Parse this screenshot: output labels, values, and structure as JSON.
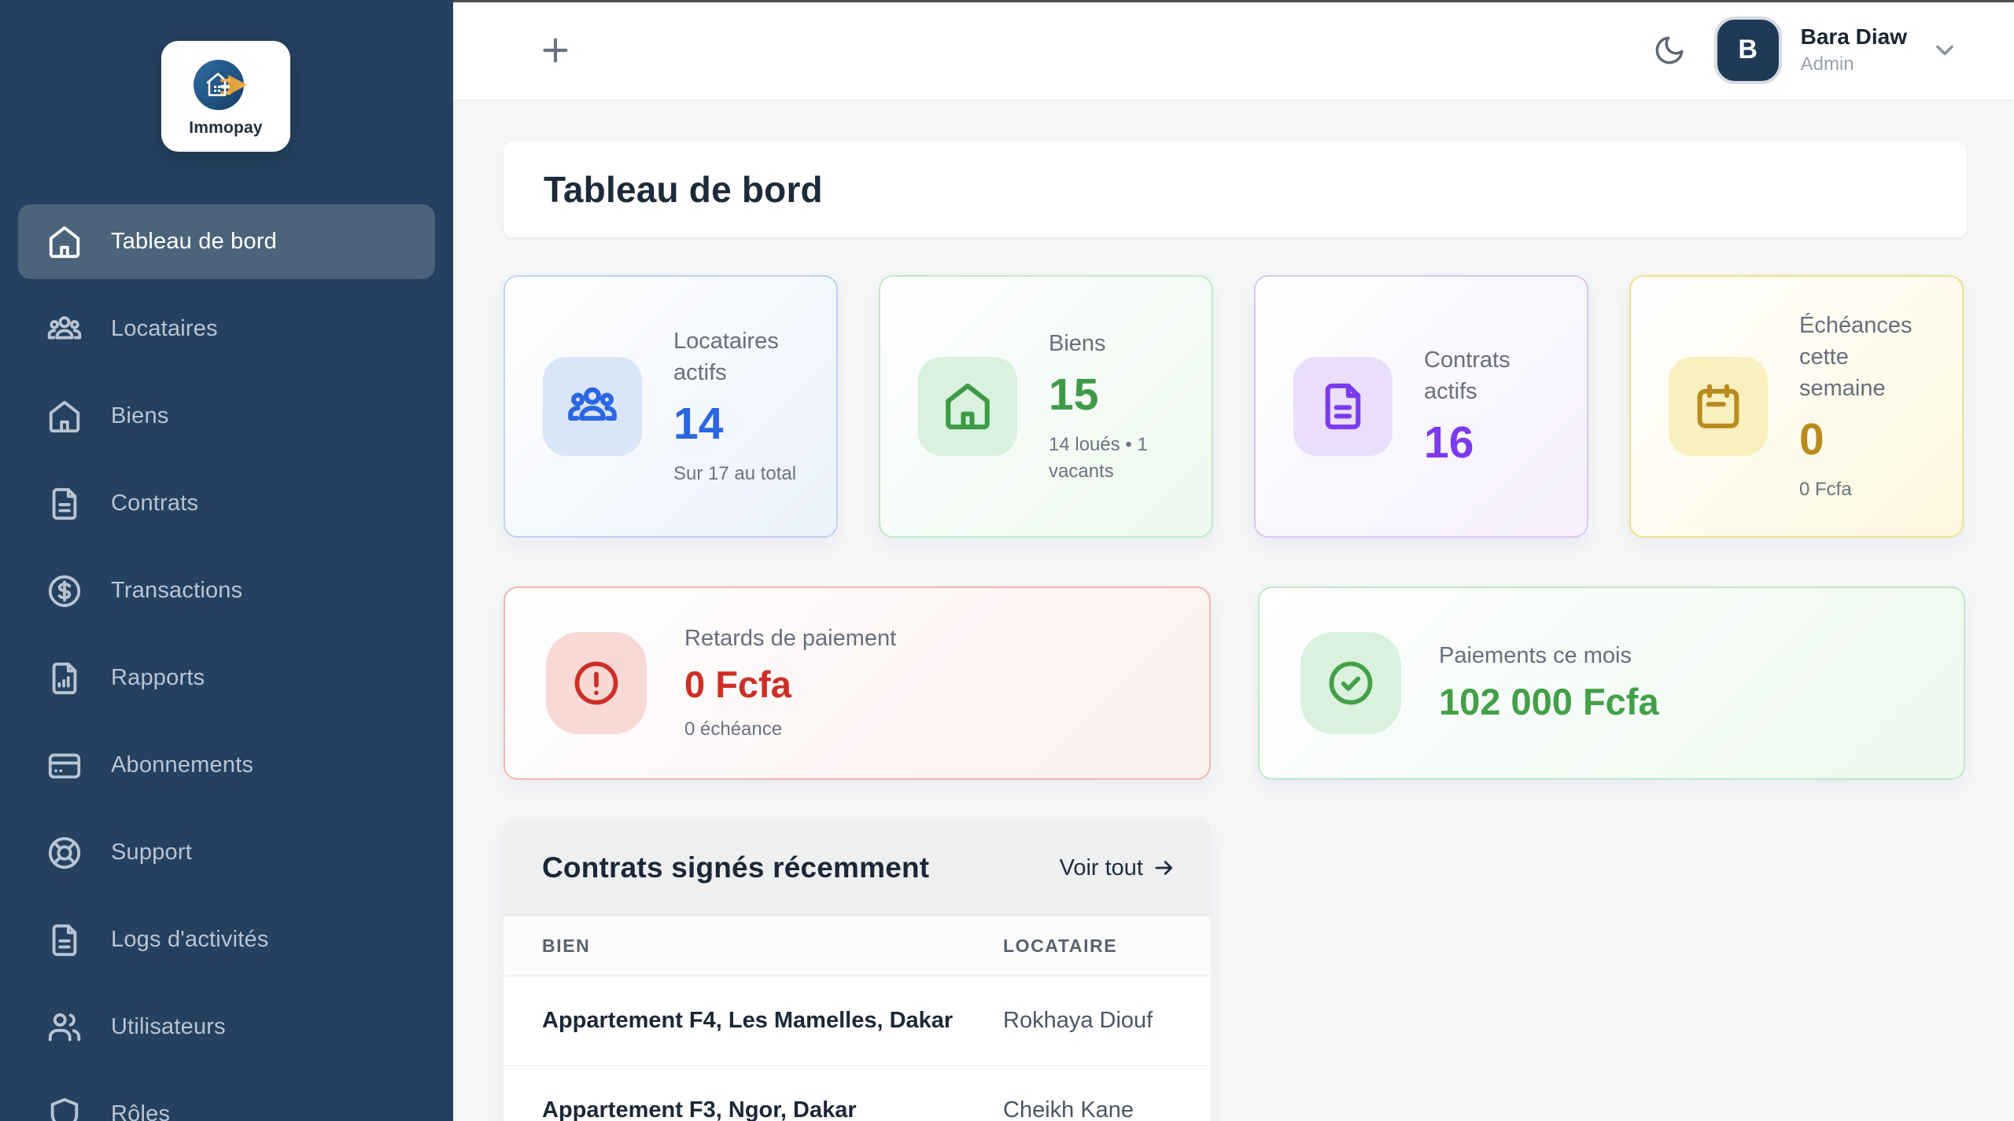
{
  "topbar": {
    "add_button": "+",
    "user": {
      "initial": "B",
      "name": "Bara Diaw",
      "role": "Admin"
    }
  },
  "sidebar": {
    "logo_text": "Immopay",
    "items": [
      {
        "id": "tableau-de-bord",
        "label": "Tableau de bord",
        "icon": "home-icon",
        "active": true
      },
      {
        "id": "locataires",
        "label": "Locataires",
        "icon": "users-group-icon",
        "active": false
      },
      {
        "id": "biens",
        "label": "Biens",
        "icon": "home-outline-icon",
        "active": false
      },
      {
        "id": "contrats",
        "label": "Contrats",
        "icon": "file-text-icon",
        "active": false
      },
      {
        "id": "transactions",
        "label": "Transactions",
        "icon": "dollar-circle-icon",
        "active": false
      },
      {
        "id": "rapports",
        "label": "Rapports",
        "icon": "file-chart-icon",
        "active": false
      },
      {
        "id": "abonnements",
        "label": "Abonnements",
        "icon": "credit-card-icon",
        "active": false
      },
      {
        "id": "support",
        "label": "Support",
        "icon": "life-buoy-icon",
        "active": false
      },
      {
        "id": "logs-activites",
        "label": "Logs d'activités",
        "icon": "file-text-icon",
        "active": false
      },
      {
        "id": "utilisateurs",
        "label": "Utilisateurs",
        "icon": "users-icon",
        "active": false
      },
      {
        "id": "roles",
        "label": "Rôles",
        "icon": "shield-icon",
        "active": false
      }
    ]
  },
  "page": {
    "title": "Tableau de bord"
  },
  "stats": {
    "cards": [
      {
        "id": "locataires-actifs",
        "icon": "users-group-icon",
        "title": "Locataires actifs",
        "value": "14",
        "subtitle": "Sur 17 au total",
        "accent": "#2b66e3",
        "tile": "#dbe5f8",
        "border": "#bdd3f3",
        "tint": "#edf3fc"
      },
      {
        "id": "biens",
        "icon": "home-outline-icon",
        "title": "Biens",
        "value": "15",
        "subtitle": "14 loués • 1 vacants",
        "accent": "#3d9a46",
        "tile": "#d9f1dd",
        "border": "#bfe8c9",
        "tint": "#eef9f0"
      },
      {
        "id": "contrats-actifs",
        "icon": "file-text-icon",
        "title": "Contrats actifs",
        "value": "16",
        "subtitle": "",
        "accent": "#7c3aed",
        "tile": "#eadefb",
        "border": "#d9c8f2",
        "tint": "#f6f1fd"
      },
      {
        "id": "echeances-semaine",
        "icon": "calendar-icon",
        "title": "Échéances cette semaine",
        "value": "0",
        "subtitle": "0 Fcfa",
        "accent": "#b98b1f",
        "tile": "#faf0bf",
        "border": "#f0e089",
        "tint": "#fdf8e2"
      }
    ]
  },
  "highlights": {
    "cards": [
      {
        "id": "retards-paiement",
        "icon": "alert-circle-icon",
        "title": "Retards de paiement",
        "value": "0 Fcfa",
        "subtitle": "0 échéance",
        "accent": "#cd2f27",
        "tile": "#f8d9d6",
        "border": "#f2b6ae",
        "tint": "#fdf1f0"
      },
      {
        "id": "paiements-mois",
        "icon": "check-circle-icon",
        "title": "Paiements ce mois",
        "value": "102 000 Fcfa",
        "subtitle": "",
        "accent": "#43a047",
        "tile": "#d9f1dd",
        "border": "#bfe8c9",
        "tint": "#eef9f0"
      }
    ]
  },
  "contracts": {
    "title": "Contrats signés récemment",
    "view_all_label": "Voir tout",
    "columns": [
      "BIEN",
      "LOCATAIRE"
    ],
    "rows": [
      {
        "bien": "Appartement F4, Les Mamelles, Dakar",
        "locataire": "Rokhaya Diouf"
      },
      {
        "bien": "Appartement F3, Ngor, Dakar",
        "locataire": "Cheikh Kane"
      }
    ]
  }
}
